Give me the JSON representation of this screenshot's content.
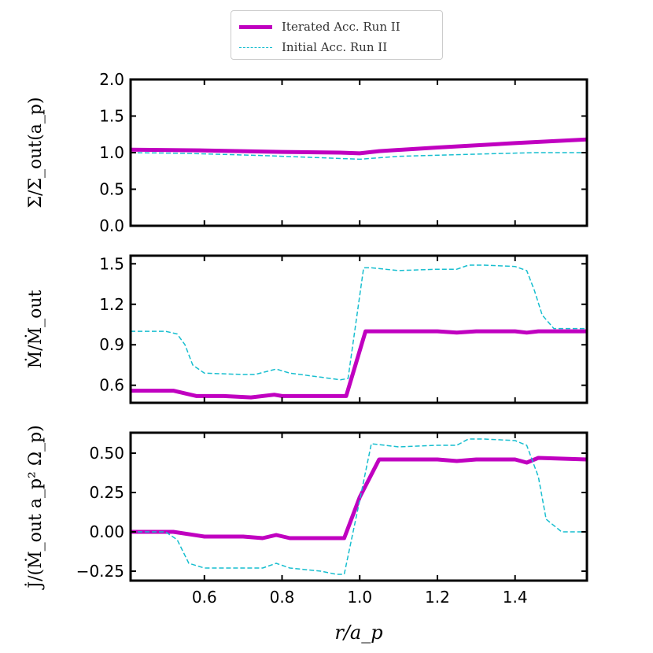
{
  "chart_data": {
    "type": "line",
    "legend": {
      "placement": "top-center",
      "entries": [
        {
          "name": "Iterated Acc. Run II",
          "color": "#c000c0",
          "style": "solid"
        },
        {
          "name": "Initial Acc. Run II",
          "color": "#17becf",
          "style": "dashed"
        }
      ]
    },
    "xlabel": "r/a_p",
    "xlim": [
      0.41,
      1.585
    ],
    "xticks": [
      "0.6",
      "0.8",
      "1.0",
      "1.2",
      "1.4"
    ],
    "xtick_values": [
      0.6,
      0.8,
      1.0,
      1.2,
      1.4
    ],
    "panels": [
      {
        "id": "sigma",
        "ylabel": "Σ/Σ_out(a_p)",
        "ylim": [
          0.0,
          2.0
        ],
        "yticks": [
          "0.0",
          "0.5",
          "1.0",
          "1.5",
          "2.0"
        ],
        "ytick_values": [
          0.0,
          0.5,
          1.0,
          1.5,
          2.0
        ],
        "series": [
          {
            "name": "Iterated Acc. Run II",
            "x": [
              0.41,
              0.6,
              0.8,
              0.95,
              1.0,
              1.05,
              1.2,
              1.4,
              1.585
            ],
            "y": [
              1.04,
              1.03,
              1.01,
              1.0,
              0.99,
              1.02,
              1.07,
              1.13,
              1.18
            ]
          },
          {
            "name": "Initial Acc. Run II",
            "x": [
              0.41,
              0.55,
              0.75,
              0.9,
              1.0,
              1.1,
              1.3,
              1.45,
              1.585
            ],
            "y": [
              1.0,
              0.99,
              0.96,
              0.93,
              0.91,
              0.95,
              0.98,
              1.0,
              1.0
            ]
          }
        ]
      },
      {
        "id": "mdot",
        "ylabel": "Ṁ/Ṁ_out",
        "ylim": [
          0.47,
          1.56
        ],
        "yticks": [
          "0.6",
          "0.9",
          "1.2",
          "1.5"
        ],
        "ytick_values": [
          0.6,
          0.9,
          1.2,
          1.5
        ],
        "series": [
          {
            "name": "Iterated Acc. Run II",
            "x": [
              0.41,
              0.52,
              0.58,
              0.65,
              0.72,
              0.78,
              0.8,
              0.9,
              0.965,
              1.015,
              1.2,
              1.25,
              1.3,
              1.4,
              1.43,
              1.46,
              1.585
            ],
            "y": [
              0.56,
              0.56,
              0.52,
              0.52,
              0.51,
              0.53,
              0.52,
              0.52,
              0.52,
              1.0,
              1.0,
              0.99,
              1.0,
              1.0,
              0.99,
              1.0,
              1.0
            ]
          },
          {
            "name": "Initial Acc. Run II",
            "x": [
              0.41,
              0.5,
              0.53,
              0.55,
              0.57,
              0.6,
              0.7,
              0.73,
              0.785,
              0.82,
              0.9,
              0.95,
              0.97,
              1.01,
              1.03,
              1.1,
              1.2,
              1.25,
              1.28,
              1.32,
              1.4,
              1.43,
              1.45,
              1.47,
              1.5,
              1.585
            ],
            "y": [
              1.0,
              1.0,
              0.98,
              0.9,
              0.75,
              0.69,
              0.68,
              0.68,
              0.72,
              0.69,
              0.66,
              0.64,
              0.65,
              1.47,
              1.47,
              1.45,
              1.46,
              1.46,
              1.49,
              1.49,
              1.48,
              1.45,
              1.3,
              1.12,
              1.02,
              1.02
            ]
          }
        ]
      },
      {
        "id": "jdot",
        "ylabel": "J̇/(Ṁ_out a_p² Ω_p)",
        "ylim": [
          -0.31,
          0.63
        ],
        "yticks": [
          "−0.25",
          "0.00",
          "0.25",
          "0.50"
        ],
        "ytick_values": [
          -0.25,
          0.0,
          0.25,
          0.5
        ],
        "series": [
          {
            "name": "Iterated Acc. Run II",
            "x": [
              0.41,
              0.52,
              0.6,
              0.7,
              0.75,
              0.785,
              0.82,
              0.9,
              0.96,
              1.0,
              1.05,
              1.2,
              1.25,
              1.3,
              1.4,
              1.43,
              1.46,
              1.585
            ],
            "y": [
              0.0,
              0.0,
              -0.03,
              -0.03,
              -0.04,
              -0.02,
              -0.04,
              -0.04,
              -0.04,
              0.22,
              0.46,
              0.46,
              0.45,
              0.46,
              0.46,
              0.44,
              0.47,
              0.46
            ]
          },
          {
            "name": "Initial Acc. Run II",
            "x": [
              0.41,
              0.5,
              0.53,
              0.56,
              0.6,
              0.7,
              0.75,
              0.785,
              0.82,
              0.9,
              0.94,
              0.96,
              1.0,
              1.03,
              1.1,
              1.2,
              1.25,
              1.28,
              1.32,
              1.4,
              1.43,
              1.46,
              1.48,
              1.52,
              1.585
            ],
            "y": [
              0.0,
              0.0,
              -0.05,
              -0.2,
              -0.23,
              -0.23,
              -0.23,
              -0.2,
              -0.23,
              -0.25,
              -0.27,
              -0.27,
              0.2,
              0.56,
              0.54,
              0.55,
              0.55,
              0.59,
              0.59,
              0.58,
              0.55,
              0.35,
              0.08,
              0.0,
              0.0
            ]
          }
        ]
      }
    ]
  }
}
